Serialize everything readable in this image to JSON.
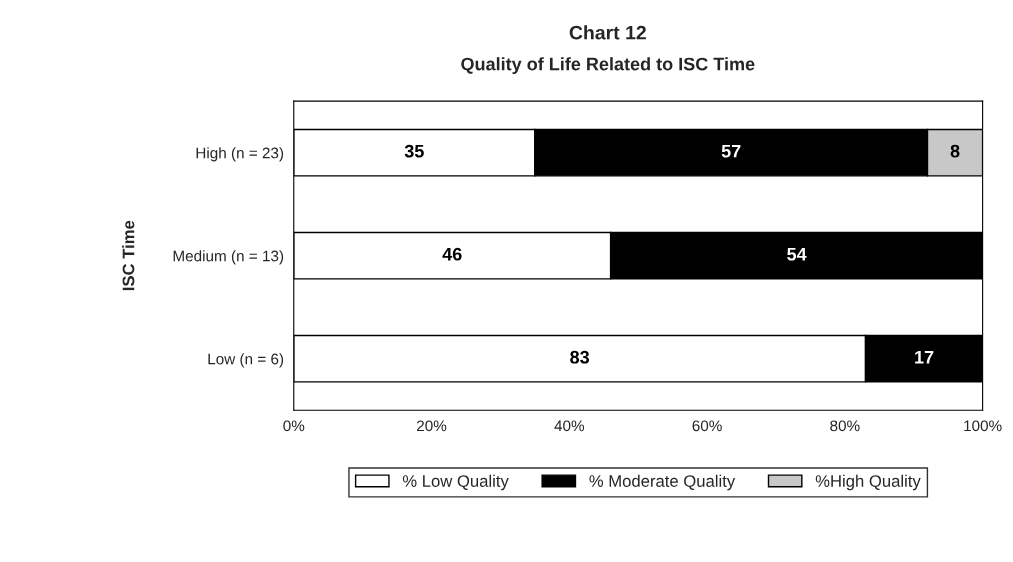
{
  "chart_data": {
    "type": "bar",
    "orientation": "horizontal",
    "stacked": true,
    "title": "Chart 12",
    "subtitle": "Quality of Life Related to ISC Time",
    "ylabel": "ISC Time",
    "categories": [
      "High (n = 23)",
      "Medium (n = 13)",
      "Low (n = 6)"
    ],
    "series": [
      {
        "name": "% Low Quality",
        "color": "#ffffff",
        "values": [
          35,
          46,
          83
        ]
      },
      {
        "name": "% Moderate Quality",
        "color": "#000000",
        "values": [
          57,
          54,
          17
        ]
      },
      {
        "name": "%High Quality",
        "color": "#c8c8c8",
        "values": [
          8,
          null,
          null
        ]
      }
    ],
    "xlim": [
      0,
      100
    ],
    "xticks": [
      {
        "value": 0,
        "label": "0%"
      },
      {
        "value": 20,
        "label": "20%"
      },
      {
        "value": 40,
        "label": "40%"
      },
      {
        "value": 60,
        "label": "60%"
      },
      {
        "value": 80,
        "label": "80%"
      },
      {
        "value": 100,
        "label": "100%"
      }
    ],
    "data_labels": true,
    "legend": "bottom",
    "grid": false
  }
}
